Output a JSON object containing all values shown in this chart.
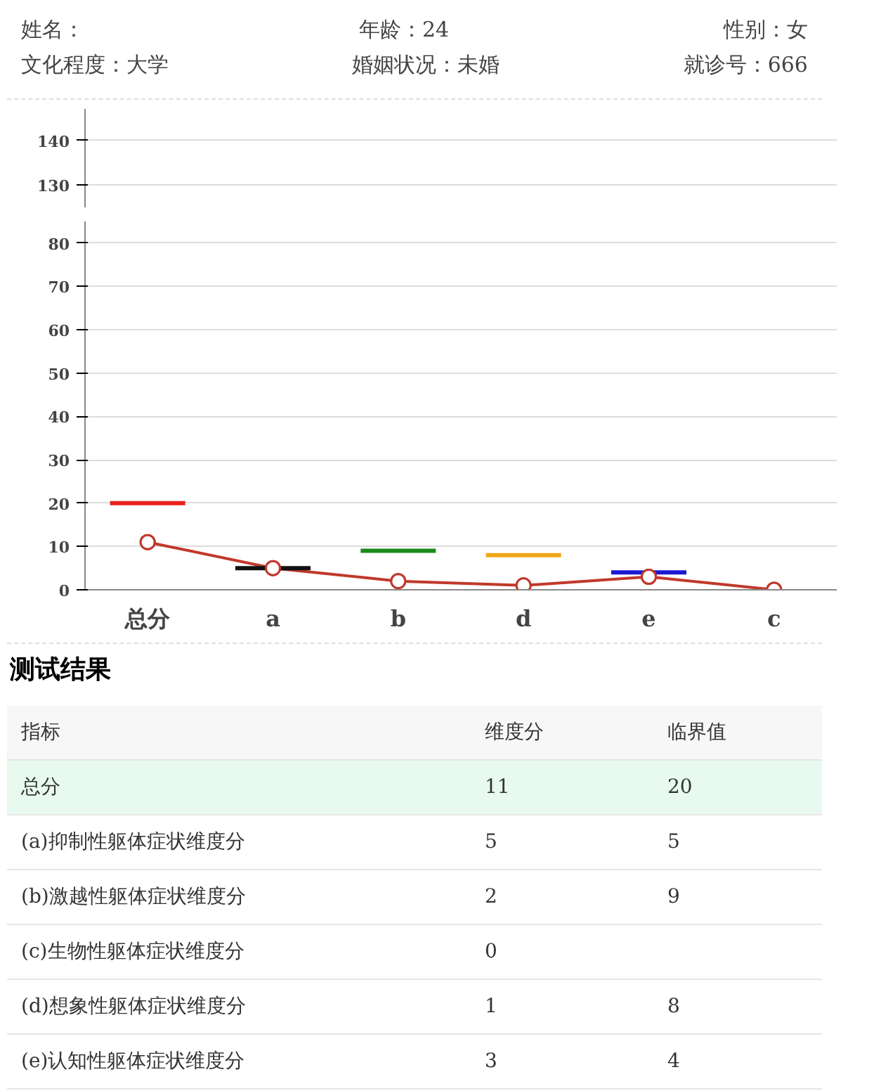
{
  "chart_data": [
    {
      "type": "line",
      "categories": [
        null,
        null,
        null,
        null,
        null,
        null
      ],
      "ylim": [
        125,
        147
      ],
      "yticks": [
        130,
        140
      ],
      "tick_labels": "y",
      "grid": "y",
      "annotations": [
        "姓名：",
        "年龄：24",
        "性别：女",
        "文化程度：大学",
        "婚姻状况：未婚",
        "就诊号：666"
      ]
    },
    {
      "type": "line",
      "categories": [
        "总分",
        "a",
        "b",
        "d",
        "e",
        "c"
      ],
      "ylim": [
        0,
        85
      ],
      "yticks": [
        0,
        10,
        20,
        30,
        40,
        50,
        60,
        70,
        80
      ],
      "grid": "y",
      "marker": "circle",
      "line_style": "solid",
      "series": [
        {
          "type": "line",
          "color": "#c0392b",
          "values": [
            11,
            5,
            2,
            1,
            3,
            0
          ]
        }
      ],
      "ref_lines": [
        {
          "axis": "y",
          "value": 20,
          "color": "#e8201c"
        },
        {
          "axis": "y",
          "value": 5,
          "color": "#111111"
        },
        {
          "axis": "y",
          "value": 9,
          "color": "#1a8a1a"
        },
        {
          "axis": "y",
          "value": 8,
          "color": "#f0a818"
        },
        {
          "axis": "y",
          "value": 4,
          "color": "#1a1ad0"
        }
      ],
      "annotations": [
        "测试结果",
        "指标",
        "维度分",
        "临界值",
        "总分",
        "11",
        "20",
        "(a)抑制性躯体症状维度分",
        "5",
        "5",
        "(b)激越性躯体症状维度分",
        "2",
        "9",
        "(c)生物性躯体症状维度分",
        "0",
        null,
        "(d)想象性躯体症状维度分",
        "1",
        "8",
        "(e)认知性躯体症状维度分",
        "3",
        "4"
      ]
    }
  ]
}
